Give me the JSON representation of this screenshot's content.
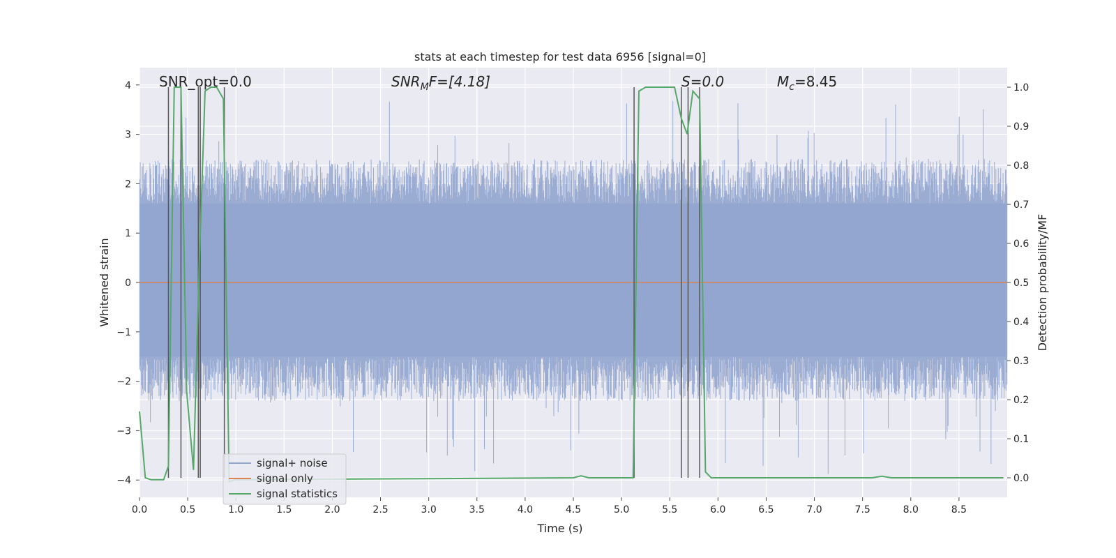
{
  "chart_data": {
    "type": "line",
    "title": "stats at each timestep for test data 6956 [signal=0]",
    "xlabel": "Time (s)",
    "ylabel": "Whitened strain",
    "y2label": "Detection probability/MF",
    "xlim": [
      0.0,
      9.0
    ],
    "ylim": [
      -4.35,
      4.35
    ],
    "y2lim": [
      -0.05,
      1.05
    ],
    "xticks": [
      "0.0",
      "0.5",
      "1.0",
      "1.5",
      "2.0",
      "2.5",
      "3.0",
      "3.5",
      "4.0",
      "4.5",
      "5.0",
      "5.5",
      "6.0",
      "6.5",
      "7.0",
      "7.5",
      "8.0",
      "8.5"
    ],
    "yticks": [
      "4",
      "3",
      "2",
      "1",
      "0",
      "−1",
      "−2",
      "−3",
      "−4"
    ],
    "y2ticks": [
      "1.0",
      "0.9",
      "0.8",
      "0.7",
      "0.6",
      "0.5",
      "0.4",
      "0.3",
      "0.2",
      "0.1",
      "0.0"
    ],
    "grid": true,
    "legend_position": "lower-left",
    "annotations": {
      "snr_opt": "SNR_opt=0.0",
      "snr_mf_main": "SNR",
      "snr_mf_sub": "M",
      "snr_mf_rest": "F=[4.18]",
      "s": "S=0.0",
      "mc_main": "M",
      "mc_sub": "c",
      "mc_rest": "=8.45"
    },
    "noise_band": {
      "min": -1.5,
      "max": 1.6,
      "spike_max": 3.8,
      "spike_min": -3.9
    },
    "series": [
      {
        "name": "signal+ noise",
        "color": "#92a5cf",
        "axis": "left",
        "kind": "noise_band"
      },
      {
        "name": "signal only",
        "color": "#dd8452",
        "axis": "left",
        "x": [
          0.0,
          9.0
        ],
        "y": [
          0.0,
          0.0
        ]
      },
      {
        "name": "signal statistics",
        "color": "#55a868",
        "axis": "right",
        "x": [
          0.0,
          0.06,
          0.12,
          0.25,
          0.3,
          0.36,
          0.43,
          0.49,
          0.56,
          0.62,
          0.68,
          0.74,
          0.8,
          0.87,
          0.93,
          0.99,
          4.5,
          4.58,
          4.66,
          5.12,
          5.18,
          5.25,
          5.55,
          5.62,
          5.68,
          5.74,
          5.81,
          5.87,
          5.93,
          7.6,
          7.7,
          7.8,
          8.96
        ],
        "y": [
          0.17,
          0.0,
          -0.005,
          -0.005,
          0.03,
          1.0,
          1.0,
          0.22,
          0.02,
          0.55,
          0.99,
          1.0,
          1.0,
          0.97,
          -0.01,
          -0.005,
          0.0,
          0.005,
          0.0,
          0.0,
          0.99,
          1.0,
          1.0,
          0.92,
          0.88,
          0.99,
          0.97,
          0.015,
          0.0,
          0.0,
          0.004,
          0.0,
          0.0
        ]
      }
    ],
    "vlines": [
      0.3,
      0.43,
      0.61,
      0.63,
      0.88,
      5.13,
      5.62,
      5.69,
      5.81
    ],
    "vline_color": "#555555"
  }
}
